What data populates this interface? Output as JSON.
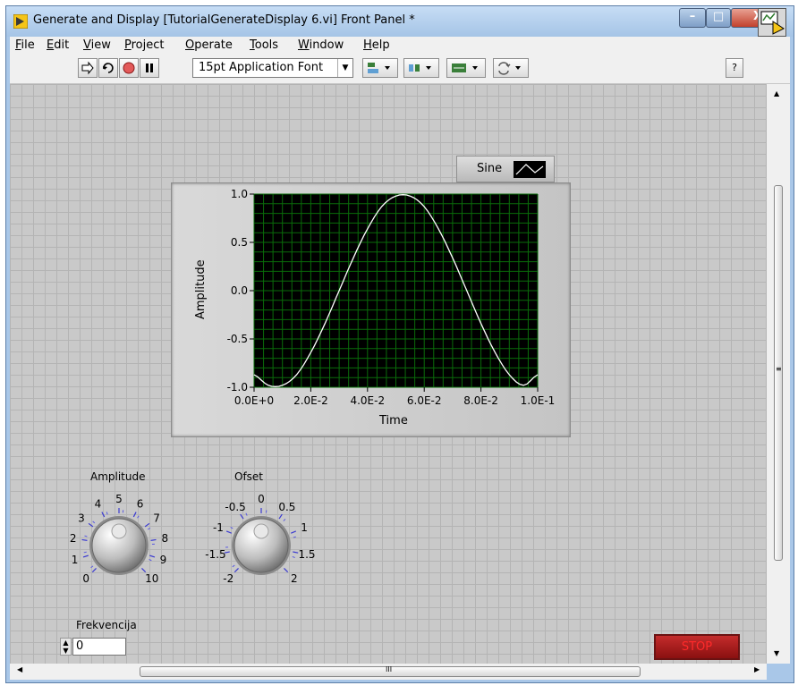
{
  "window": {
    "title": "Generate and Display [TutorialGenerateDisplay 6.vi] Front Panel *",
    "min_glyph": "–",
    "max_glyph": "□",
    "close_glyph": "X"
  },
  "menu": {
    "items": [
      "File",
      "Edit",
      "View",
      "Project",
      "Operate",
      "Tools",
      "Window",
      "Help"
    ]
  },
  "toolbar": {
    "font_label": "15pt Application Font",
    "help_glyph": "?"
  },
  "graph": {
    "legend_label": "Sine",
    "ylabel": "Amplitude",
    "xlabel": "Time",
    "bg_color": "#000000",
    "grid_color": "#0a6b0a",
    "line_color": "#ffffff"
  },
  "chart_data": {
    "type": "line",
    "title": "",
    "xlabel": "Time",
    "ylabel": "Amplitude",
    "xlim": [
      0,
      0.1
    ],
    "ylim": [
      -1,
      1
    ],
    "x_ticks": [
      "0.0E+0",
      "2.0E-2",
      "4.0E-2",
      "6.0E-2",
      "8.0E-2",
      "1.0E-1"
    ],
    "y_ticks": [
      "1.0",
      "0.5",
      "0.0",
      "-0.5",
      "-1.0"
    ],
    "grid": true,
    "legend": "top-right",
    "series": [
      {
        "name": "Sine",
        "x": [
          0,
          0.005,
          0.01,
          0.015,
          0.02,
          0.025,
          0.03,
          0.035,
          0.04,
          0.045,
          0.05,
          0.055,
          0.06,
          0.065,
          0.07,
          0.075,
          0.08,
          0.085,
          0.09,
          0.095,
          0.1
        ],
        "y": [
          -0.87,
          -0.98,
          -0.98,
          -0.87,
          -0.64,
          -0.34,
          0.0,
          0.34,
          0.64,
          0.87,
          0.98,
          0.98,
          0.87,
          0.64,
          0.34,
          0.0,
          -0.34,
          -0.64,
          -0.87,
          -0.98,
          -0.87
        ]
      }
    ]
  },
  "knob_amplitude": {
    "label": "Amplitude",
    "ticks": [
      "0",
      "1",
      "2",
      "3",
      "4",
      "5",
      "6",
      "7",
      "8",
      "9",
      "10"
    ],
    "value": 5
  },
  "knob_ofset": {
    "label": "Ofset",
    "ticks": [
      "-2",
      "-1.5",
      "-1",
      "-0.5",
      "0",
      "0.5",
      "1",
      "1.5",
      "2"
    ],
    "value": 0
  },
  "frekvencija": {
    "label": "Frekvencija",
    "value": "0"
  },
  "stop_label": "STOP",
  "hscroll_center_glyph": "III"
}
